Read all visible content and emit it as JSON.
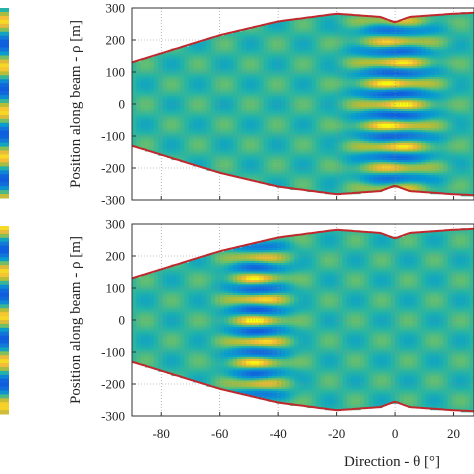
{
  "chart_data": [
    {
      "type": "heatmap",
      "panel": "top",
      "xlabel": "",
      "ylabel": "Position along beam - ρ [m]",
      "xlim": [
        -90,
        27
      ],
      "ylim": [
        -300,
        300
      ],
      "xticks": [
        -80,
        -60,
        -40,
        -20,
        0,
        20
      ],
      "yticks": [
        300,
        200,
        100,
        0,
        -100,
        -200,
        -300
      ],
      "xtick_labels_shown": false,
      "grid": true,
      "colormap": "parula",
      "boundary_color": "#c0282d",
      "envelope": {
        "theta": [
          -90,
          -60,
          -40,
          -20,
          -5,
          0,
          5,
          20,
          27
        ],
        "rho": [
          130,
          215,
          258,
          282,
          272,
          255,
          272,
          282,
          285
        ]
      },
      "pattern": {
        "type": "ripples",
        "center_theta": 0,
        "center_width": 12,
        "rho_period": 66,
        "amplitude": 1.0
      }
    },
    {
      "type": "heatmap",
      "panel": "bottom",
      "xlabel": "Direction - θ [°]",
      "ylabel": "Position along beam - ρ [m]",
      "xlim": [
        -90,
        27
      ],
      "ylim": [
        -300,
        300
      ],
      "xticks": [
        -80,
        -60,
        -40,
        -20,
        0,
        20
      ],
      "xtick_labels": [
        "-80",
        "-60",
        "-40",
        "-20",
        "0",
        "20"
      ],
      "yticks": [
        300,
        200,
        100,
        0,
        -100,
        -200,
        -300
      ],
      "grid": true,
      "colormap": "parula",
      "boundary_color": "#c0282d",
      "envelope": {
        "theta": [
          -90,
          -60,
          -40,
          -20,
          -5,
          0,
          5,
          20,
          27
        ],
        "rho": [
          130,
          215,
          258,
          282,
          272,
          255,
          272,
          282,
          285
        ]
      },
      "pattern": {
        "type": "ripples",
        "center_theta": -47,
        "center_width": 9,
        "rho_period": 66,
        "amplitude": 1.0
      }
    }
  ],
  "colors": {
    "parula_dark": "#352a87",
    "parula_blue": "#1379d0",
    "parula_teal": "#23b3a8",
    "parula_green": "#8cc644",
    "parula_yellow": "#f9e51e",
    "boundary": "#c0282d"
  }
}
